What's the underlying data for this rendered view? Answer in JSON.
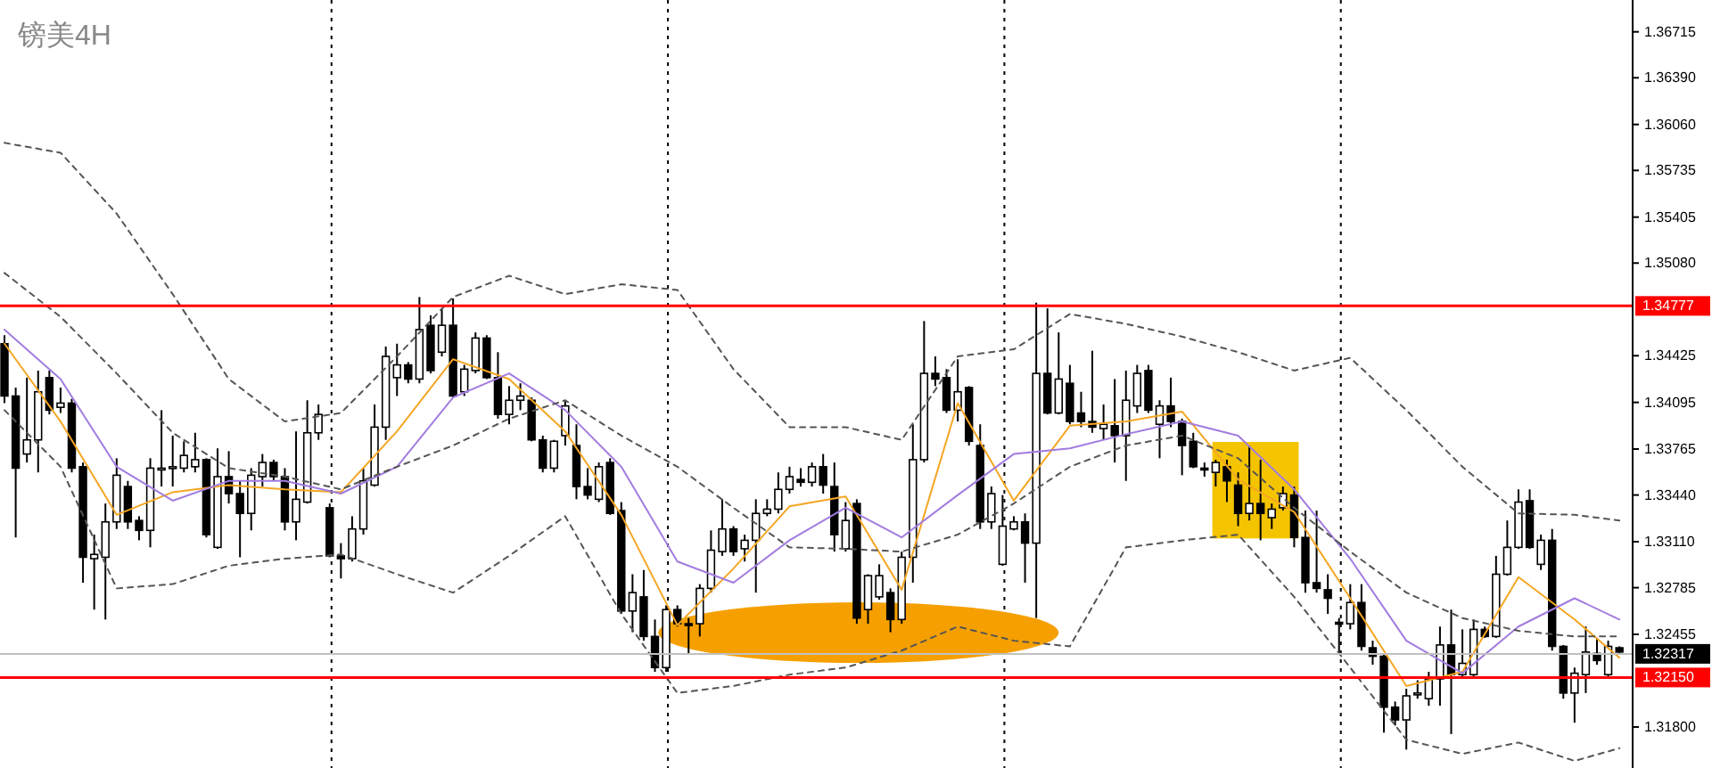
{
  "chart_data": {
    "type": "candlestick",
    "title": "镑美4H",
    "categories": [
      null,
      null,
      null,
      null,
      null,
      null,
      null,
      null,
      null,
      null,
      null,
      null,
      null,
      null,
      null,
      null,
      null,
      null,
      null,
      null,
      null,
      null,
      null,
      null,
      null,
      null,
      null,
      null,
      null,
      null,
      null,
      null,
      null,
      null,
      null,
      null,
      null,
      null,
      null,
      null,
      null,
      null,
      null,
      null,
      null,
      null,
      null,
      null,
      null,
      null,
      null,
      null,
      null,
      null,
      null,
      null,
      null,
      null,
      null,
      null,
      null,
      null,
      null,
      null,
      null,
      null,
      null,
      null,
      null,
      null,
      null,
      null,
      null,
      null,
      null,
      null,
      null,
      null,
      null,
      null,
      null,
      null,
      null,
      null,
      null,
      null,
      null,
      null,
      null,
      null,
      null,
      null,
      null,
      null,
      null,
      null,
      null,
      null,
      null,
      null,
      null,
      null,
      null,
      null,
      null,
      null,
      null,
      null,
      null,
      null,
      null,
      null,
      null,
      null,
      null,
      null,
      null,
      null,
      null,
      null,
      null,
      null,
      null,
      null,
      null,
      null,
      null,
      null,
      null,
      null,
      null,
      null,
      null,
      null,
      null,
      null,
      null,
      null,
      null,
      null,
      null,
      null,
      null,
      null,
      null
    ],
    "ohlc": [
      [
        1.3451,
        1.3457,
        1.3409,
        1.3414
      ],
      [
        1.3414,
        1.342,
        1.3314,
        1.3363
      ],
      [
        1.3373,
        1.3427,
        1.3367,
        1.3383
      ],
      [
        1.3383,
        1.3432,
        1.336,
        1.3417
      ],
      [
        1.3427,
        1.3432,
        1.3401,
        1.3404
      ],
      [
        1.3406,
        1.342,
        1.3402,
        1.3409
      ],
      [
        1.3409,
        1.3412,
        1.336,
        1.3363
      ],
      [
        1.3364,
        1.3367,
        1.3282,
        1.33
      ],
      [
        1.3299,
        1.3316,
        1.3263,
        1.3302
      ],
      [
        1.33,
        1.3338,
        1.3256,
        1.3325
      ],
      [
        1.3325,
        1.337,
        1.332,
        1.3358
      ],
      [
        1.335,
        1.3354,
        1.332,
        1.3325
      ],
      [
        1.3326,
        1.3329,
        1.3312,
        1.3319
      ],
      [
        1.3319,
        1.337,
        1.3307,
        1.3363
      ],
      [
        1.3362,
        1.3404,
        1.335,
        1.3363
      ],
      [
        1.3363,
        1.3386,
        1.335,
        1.3364
      ],
      [
        1.3363,
        1.3382,
        1.336,
        1.3372
      ],
      [
        1.3364,
        1.3388,
        1.336,
        1.3369
      ],
      [
        1.3369,
        1.337,
        1.3314,
        1.3316
      ],
      [
        1.3307,
        1.3377,
        1.3306,
        1.3357
      ],
      [
        1.3357,
        1.3375,
        1.3338,
        1.3345
      ],
      [
        1.3345,
        1.3354,
        1.33,
        1.3331
      ],
      [
        1.3331,
        1.3363,
        1.3319,
        1.3358
      ],
      [
        1.3357,
        1.3373,
        1.335,
        1.3367
      ],
      [
        1.3367,
        1.3369,
        1.3354,
        1.3357
      ],
      [
        1.3357,
        1.3363,
        1.3319,
        1.3325
      ],
      [
        1.3325,
        1.3389,
        1.3312,
        1.3341
      ],
      [
        1.3339,
        1.3411,
        1.3338,
        1.3388
      ],
      [
        1.3388,
        1.3408,
        1.3383,
        1.3401
      ],
      [
        1.3335,
        1.3338,
        1.33,
        1.3301
      ],
      [
        1.3301,
        1.331,
        1.3285,
        1.3299
      ],
      [
        1.3299,
        1.3329,
        1.3297,
        1.332
      ],
      [
        1.332,
        1.3363,
        1.3316,
        1.3354
      ],
      [
        1.3351,
        1.3408,
        1.335,
        1.3392
      ],
      [
        1.3392,
        1.3449,
        1.3383,
        1.3442
      ],
      [
        1.3427,
        1.3451,
        1.3414,
        1.3436
      ],
      [
        1.3436,
        1.3438,
        1.3423,
        1.3426
      ],
      [
        1.3426,
        1.3484,
        1.3423,
        1.3461
      ],
      [
        1.3464,
        1.3471,
        1.343,
        1.3432
      ],
      [
        1.3445,
        1.3476,
        1.3442,
        1.3464
      ],
      [
        1.3464,
        1.3483,
        1.3413,
        1.3414
      ],
      [
        1.3417,
        1.3436,
        1.3414,
        1.3433
      ],
      [
        1.3432,
        1.3459,
        1.343,
        1.3455
      ],
      [
        1.3455,
        1.3457,
        1.3426,
        1.3427
      ],
      [
        1.3427,
        1.3445,
        1.3398,
        1.3401
      ],
      [
        1.3401,
        1.3421,
        1.3394,
        1.3411
      ],
      [
        1.3411,
        1.3423,
        1.3404,
        1.3414
      ],
      [
        1.3411,
        1.3413,
        1.3382,
        1.3383
      ],
      [
        1.3383,
        1.3386,
        1.336,
        1.3363
      ],
      [
        1.3363,
        1.3383,
        1.336,
        1.3382
      ],
      [
        1.3386,
        1.3411,
        1.3379,
        1.3407
      ],
      [
        1.3379,
        1.3394,
        1.3341,
        1.335
      ],
      [
        1.335,
        1.3363,
        1.3341,
        1.3344
      ],
      [
        1.3341,
        1.3367,
        1.3339,
        1.3364
      ],
      [
        1.3367,
        1.337,
        1.333,
        1.3331
      ],
      [
        1.3333,
        1.3339,
        1.326,
        1.3262
      ],
      [
        1.3262,
        1.3288,
        1.3247,
        1.3275
      ],
      [
        1.3272,
        1.3291,
        1.3241,
        1.3244
      ],
      [
        1.3244,
        1.3256,
        1.3219,
        1.3222
      ],
      [
        1.3222,
        1.3266,
        1.3219,
        1.3263
      ],
      [
        1.3263,
        1.3266,
        1.3251,
        1.3253
      ],
      [
        1.3253,
        1.3257,
        1.3232,
        1.3252
      ],
      [
        1.3253,
        1.3281,
        1.3244,
        1.3278
      ],
      [
        1.3278,
        1.3319,
        1.3275,
        1.3305
      ],
      [
        1.3304,
        1.3341,
        1.3301,
        1.332
      ],
      [
        1.332,
        1.3322,
        1.3301,
        1.3304
      ],
      [
        1.3306,
        1.3316,
        1.3297,
        1.3312
      ],
      [
        1.3312,
        1.3341,
        1.3275,
        1.3331
      ],
      [
        1.3331,
        1.3341,
        1.3329,
        1.3334
      ],
      [
        1.3334,
        1.336,
        1.3331,
        1.3348
      ],
      [
        1.3348,
        1.3364,
        1.3345,
        1.3357
      ],
      [
        1.3355,
        1.3363,
        1.335,
        1.3353
      ],
      [
        1.3353,
        1.3367,
        1.335,
        1.3364
      ],
      [
        1.3364,
        1.3373,
        1.3345,
        1.3351
      ],
      [
        1.335,
        1.3367,
        1.3304,
        1.3316
      ],
      [
        1.3306,
        1.3339,
        1.3304,
        1.3326
      ],
      [
        1.3338,
        1.3341,
        1.3253,
        1.3257
      ],
      [
        1.3263,
        1.3288,
        1.3253,
        1.3287
      ],
      [
        1.3272,
        1.3295,
        1.327,
        1.3287
      ],
      [
        1.3275,
        1.3278,
        1.3247,
        1.3256
      ],
      [
        1.3256,
        1.3304,
        1.3253,
        1.33
      ],
      [
        1.33,
        1.3394,
        1.3282,
        1.3369
      ],
      [
        1.3369,
        1.3467,
        1.3367,
        1.343
      ],
      [
        1.343,
        1.3442,
        1.3421,
        1.3426
      ],
      [
        1.3427,
        1.3433,
        1.3402,
        1.3404
      ],
      [
        1.3404,
        1.344,
        1.3396,
        1.3417
      ],
      [
        1.342,
        1.3421,
        1.3379,
        1.3382
      ],
      [
        1.3379,
        1.3394,
        1.332,
        1.3325
      ],
      [
        1.3325,
        1.335,
        1.332,
        1.3345
      ],
      [
        1.3295,
        1.3344,
        1.3294,
        1.3322
      ],
      [
        1.332,
        1.3329,
        1.3319,
        1.3325
      ],
      [
        1.3325,
        1.3331,
        1.3282,
        1.331
      ],
      [
        1.331,
        1.348,
        1.3257,
        1.343
      ],
      [
        1.343,
        1.3476,
        1.3401,
        1.3402
      ],
      [
        1.3402,
        1.3459,
        1.3401,
        1.3426
      ],
      [
        1.3423,
        1.3436,
        1.3394,
        1.3396
      ],
      [
        1.3402,
        1.3417,
        1.3392,
        1.3396
      ],
      [
        1.3396,
        1.3446,
        1.3388,
        1.3392
      ],
      [
        1.3391,
        1.3408,
        1.3383,
        1.3394
      ],
      [
        1.3393,
        1.3426,
        1.3367,
        1.3386
      ],
      [
        1.3386,
        1.3432,
        1.3354,
        1.3411
      ],
      [
        1.3407,
        1.3436,
        1.3402,
        1.343
      ],
      [
        1.3432,
        1.3436,
        1.3402,
        1.3404
      ],
      [
        1.3394,
        1.3411,
        1.337,
        1.3407
      ],
      [
        1.3407,
        1.3427,
        1.3392,
        1.3396
      ],
      [
        1.3396,
        1.3398,
        1.3358,
        1.3379
      ],
      [
        1.3382,
        1.3388,
        1.3363,
        1.3364
      ],
      [
        1.3363,
        1.3367,
        1.3357,
        1.3362
      ],
      [
        1.336,
        1.3369,
        1.335,
        1.3367
      ],
      [
        1.3364,
        1.3369,
        1.3339,
        1.3354
      ],
      [
        1.3351,
        1.336,
        1.3322,
        1.3331
      ],
      [
        1.3331,
        1.3379,
        1.3326,
        1.3338
      ],
      [
        1.3338,
        1.3369,
        1.3312,
        1.3331
      ],
      [
        1.3328,
        1.3338,
        1.332,
        1.3334
      ],
      [
        1.3335,
        1.335,
        1.3333,
        1.3345
      ],
      [
        1.3344,
        1.335,
        1.3307,
        1.3314
      ],
      [
        1.3314,
        1.3333,
        1.3275,
        1.3282
      ],
      [
        1.3282,
        1.3333,
        1.3275,
        1.3278
      ],
      [
        1.3277,
        1.3288,
        1.326,
        1.3271
      ],
      [
        1.3254,
        1.3257,
        1.3232,
        1.3253
      ],
      [
        1.3253,
        1.3281,
        1.3249,
        1.3268
      ],
      [
        1.3268,
        1.3281,
        1.3234,
        1.3237
      ],
      [
        1.3236,
        1.3241,
        1.3224,
        1.323
      ],
      [
        1.323,
        1.3232,
        1.3176,
        1.3194
      ],
      [
        1.3194,
        1.3198,
        1.3181,
        1.3185
      ],
      [
        1.3185,
        1.3207,
        1.3164,
        1.3202
      ],
      [
        1.3203,
        1.3213,
        1.32,
        1.3204
      ],
      [
        1.32,
        1.3219,
        1.3195,
        1.3214
      ],
      [
        1.3214,
        1.3251,
        1.3195,
        1.3238
      ],
      [
        1.3238,
        1.3263,
        1.3175,
        1.3217
      ],
      [
        1.3217,
        1.3249,
        1.3214,
        1.3225
      ],
      [
        1.3217,
        1.3256,
        1.3214,
        1.3249
      ],
      [
        1.3249,
        1.3251,
        1.3243,
        1.3244
      ],
      [
        1.3244,
        1.3301,
        1.3243,
        1.3288
      ],
      [
        1.3288,
        1.3326,
        1.3287,
        1.3307
      ],
      [
        1.3307,
        1.3348,
        1.3306,
        1.3339
      ],
      [
        1.334,
        1.3348,
        1.3306,
        1.3307
      ],
      [
        1.3295,
        1.3316,
        1.3291,
        1.3312
      ],
      [
        1.3312,
        1.332,
        1.3234,
        1.3237
      ],
      [
        1.3237,
        1.3238,
        1.32,
        1.3204
      ],
      [
        1.3204,
        1.3222,
        1.3183,
        1.3218
      ],
      [
        1.3217,
        1.3251,
        1.3204,
        1.3233
      ],
      [
        1.3232,
        1.3243,
        1.3224,
        1.3227
      ],
      [
        1.3217,
        1.3241,
        1.3214,
        1.3237
      ],
      [
        1.3236,
        1.3237,
        1.3232,
        1.3233
      ]
    ],
    "series": [
      {
        "type": "line",
        "color": "#f5a623",
        "line_style": "solid",
        "values": [
          1.3451,
          null,
          null,
          null,
          null,
          1.3396,
          null,
          null,
          null,
          null,
          1.333,
          null,
          null,
          null,
          null,
          1.3346,
          null,
          null,
          null,
          null,
          1.3351,
          null,
          null,
          null,
          null,
          1.3348,
          null,
          null,
          null,
          null,
          1.3346,
          null,
          null,
          null,
          null,
          1.3389,
          null,
          null,
          null,
          null,
          1.344,
          null,
          null,
          null,
          null,
          1.3426,
          null,
          null,
          null,
          null,
          1.3389,
          null,
          null,
          null,
          null,
          1.333,
          null,
          null,
          null,
          null,
          1.3252,
          null,
          null,
          null,
          null,
          1.3292,
          null,
          null,
          null,
          null,
          1.3336,
          null,
          null,
          null,
          null,
          1.3343,
          null,
          null,
          null,
          null,
          1.3277,
          null,
          null,
          null,
          null,
          1.3409,
          null,
          null,
          null,
          null,
          1.334,
          null,
          null,
          null,
          null,
          1.3393,
          null,
          null,
          null,
          null,
          1.3396,
          null,
          null,
          null,
          null,
          1.3403,
          null,
          null,
          null,
          null,
          1.3355,
          null,
          null,
          null,
          null,
          1.3332,
          null,
          null,
          null,
          null,
          1.3271,
          null,
          null,
          null,
          null,
          1.3209,
          null,
          null,
          null,
          null,
          1.3219,
          null,
          null,
          null,
          null,
          1.3286,
          null,
          null,
          null,
          null,
          1.3256,
          null,
          null,
          null,
          1.3229
        ]
      },
      {
        "type": "line",
        "color": "#a27ce0",
        "line_style": "solid",
        "values": [
          1.3461,
          null,
          null,
          null,
          null,
          1.3426,
          null,
          null,
          null,
          null,
          1.3364,
          null,
          null,
          null,
          null,
          1.334,
          null,
          null,
          null,
          null,
          1.3354,
          null,
          null,
          null,
          null,
          1.3354,
          null,
          null,
          null,
          null,
          1.3345,
          null,
          null,
          null,
          null,
          1.3364,
          null,
          null,
          null,
          null,
          1.3413,
          null,
          null,
          null,
          null,
          1.343,
          null,
          null,
          null,
          null,
          1.3404,
          null,
          null,
          null,
          null,
          1.3364,
          null,
          null,
          null,
          null,
          1.3297,
          null,
          null,
          null,
          null,
          1.3282,
          null,
          null,
          null,
          null,
          1.3312,
          null,
          null,
          null,
          null,
          1.3335,
          null,
          null,
          null,
          null,
          1.3314,
          null,
          null,
          null,
          null,
          1.3344,
          null,
          null,
          null,
          null,
          1.3373,
          null,
          null,
          null,
          null,
          1.3377,
          null,
          null,
          null,
          null,
          1.3387,
          null,
          null,
          null,
          null,
          1.3396,
          null,
          null,
          null,
          null,
          1.3386,
          null,
          null,
          null,
          null,
          1.3348,
          null,
          null,
          null,
          null,
          1.3299,
          null,
          null,
          null,
          null,
          1.3241,
          null,
          null,
          null,
          null,
          1.3218,
          null,
          null,
          null,
          null,
          1.3251,
          null,
          null,
          null,
          null,
          1.3271,
          null,
          null,
          null,
          1.3256
        ]
      },
      {
        "type": "line",
        "color": "#555555",
        "line_style": "dashed",
        "values": [
          1.3593,
          null,
          null,
          null,
          null,
          1.3586,
          null,
          null,
          null,
          null,
          1.3543,
          null,
          null,
          null,
          null,
          1.3486,
          null,
          null,
          null,
          null,
          1.3426,
          null,
          null,
          null,
          null,
          1.3396,
          null,
          null,
          null,
          null,
          1.3402,
          null,
          null,
          null,
          null,
          1.3442,
          null,
          null,
          null,
          null,
          1.3484,
          null,
          null,
          null,
          null,
          1.3499,
          null,
          null,
          null,
          null,
          1.3486,
          null,
          null,
          null,
          null,
          1.3493,
          null,
          null,
          null,
          null,
          1.3489,
          null,
          null,
          null,
          null,
          1.3433,
          null,
          null,
          null,
          null,
          1.3392,
          null,
          null,
          null,
          null,
          1.3392,
          null,
          null,
          null,
          null,
          1.3383,
          null,
          null,
          null,
          null,
          1.3442,
          null,
          null,
          null,
          null,
          1.3447,
          null,
          null,
          null,
          null,
          1.3472,
          null,
          null,
          null,
          null,
          1.3465,
          null,
          null,
          null,
          null,
          1.3456,
          null,
          null,
          null,
          null,
          1.3445,
          null,
          null,
          null,
          null,
          1.3432,
          null,
          null,
          null,
          null,
          1.3441,
          null,
          null,
          null,
          null,
          1.3404,
          null,
          null,
          null,
          null,
          1.3364,
          null,
          null,
          null,
          null,
          1.3331,
          null,
          null,
          null,
          null,
          1.333,
          null,
          null,
          null,
          1.3326
        ]
      },
      {
        "type": "line",
        "color": "#555555",
        "line_style": "dashed",
        "values": [
          1.3501,
          null,
          null,
          null,
          null,
          1.347,
          null,
          null,
          null,
          null,
          1.343,
          null,
          null,
          null,
          null,
          1.3388,
          null,
          null,
          null,
          null,
          1.3363,
          null,
          null,
          null,
          null,
          1.3357,
          null,
          null,
          null,
          null,
          1.3348,
          null,
          null,
          null,
          null,
          1.3364,
          null,
          null,
          null,
          null,
          1.3379,
          null,
          null,
          null,
          null,
          1.3398,
          null,
          null,
          null,
          null,
          1.3411,
          null,
          null,
          null,
          null,
          1.3386,
          null,
          null,
          null,
          null,
          1.3364,
          null,
          null,
          null,
          null,
          1.3335,
          null,
          null,
          null,
          null,
          1.3307,
          null,
          null,
          null,
          null,
          1.3306,
          null,
          null,
          null,
          null,
          1.3304,
          null,
          null,
          null,
          null,
          1.3316,
          null,
          null,
          null,
          null,
          1.3338,
          null,
          null,
          null,
          null,
          1.3364,
          null,
          null,
          null,
          null,
          1.3379,
          null,
          null,
          null,
          null,
          1.3386,
          null,
          null,
          null,
          null,
          1.337,
          null,
          null,
          null,
          null,
          1.3335,
          null,
          null,
          null,
          null,
          1.3304,
          null,
          null,
          null,
          null,
          1.3275,
          null,
          null,
          null,
          null,
          1.3257,
          null,
          null,
          null,
          null,
          1.3248,
          null,
          null,
          null,
          null,
          1.3244,
          null,
          null,
          null,
          1.3244
        ]
      },
      {
        "type": "line",
        "color": "#555555",
        "line_style": "dashed",
        "values": [
          1.3404,
          null,
          null,
          null,
          null,
          1.3364,
          null,
          null,
          null,
          null,
          1.3278,
          null,
          null,
          null,
          null,
          1.3281,
          null,
          null,
          null,
          null,
          1.3294,
          null,
          null,
          null,
          null,
          1.3299,
          null,
          null,
          null,
          null,
          1.3302,
          null,
          null,
          null,
          null,
          1.3288,
          null,
          null,
          null,
          null,
          1.3275,
          null,
          null,
          null,
          null,
          1.3301,
          null,
          null,
          null,
          null,
          1.3329,
          null,
          null,
          null,
          null,
          1.326,
          null,
          null,
          null,
          null,
          1.3204,
          null,
          null,
          null,
          null,
          1.3209,
          null,
          null,
          null,
          null,
          1.3217,
          null,
          null,
          null,
          null,
          1.3222,
          null,
          null,
          null,
          null,
          1.3234,
          null,
          null,
          null,
          null,
          1.3251,
          null,
          null,
          null,
          null,
          1.3241,
          null,
          null,
          null,
          null,
          1.3237,
          null,
          null,
          null,
          null,
          1.3307,
          null,
          null,
          null,
          null,
          1.3312,
          null,
          null,
          null,
          null,
          1.3316,
          null,
          null,
          null,
          null,
          1.3272,
          null,
          null,
          null,
          null,
          1.3222,
          null,
          null,
          null,
          null,
          1.3171,
          null,
          null,
          null,
          null,
          1.3161,
          null,
          null,
          null,
          null,
          1.3169,
          null,
          null,
          null,
          null,
          1.3156,
          null,
          null,
          null,
          1.3165
        ]
      }
    ],
    "ylim": [
      1.3151,
      1.3694
    ],
    "yticks": [
      1.36715,
      {
        "value": 1.3639,
        "label": "1.36390"
      },
      {
        "value": 1.3606,
        "label": "1.36060"
      },
      1.35735,
      1.35405,
      {
        "value": 1.3508,
        "label": "1.35080"
      },
      1.34425,
      1.34095,
      1.33765,
      {
        "value": 1.3344,
        "label": "1.33440"
      },
      {
        "value": 1.3311,
        "label": "1.33110"
      },
      1.32785,
      1.32455,
      {
        "value": 1.318,
        "label": "1.31800"
      }
    ],
    "ref_lines": [
      {
        "axis": "y",
        "value": 1.34777,
        "label": "1.34777",
        "color": "#ff0000"
      },
      {
        "axis": "y",
        "value": 1.3215,
        "label": "1.32150",
        "color": "#ff0000"
      },
      {
        "axis": "y",
        "value": 1.32317,
        "label": "1.32317",
        "color": "#c0c0c0"
      }
    ]
  }
}
